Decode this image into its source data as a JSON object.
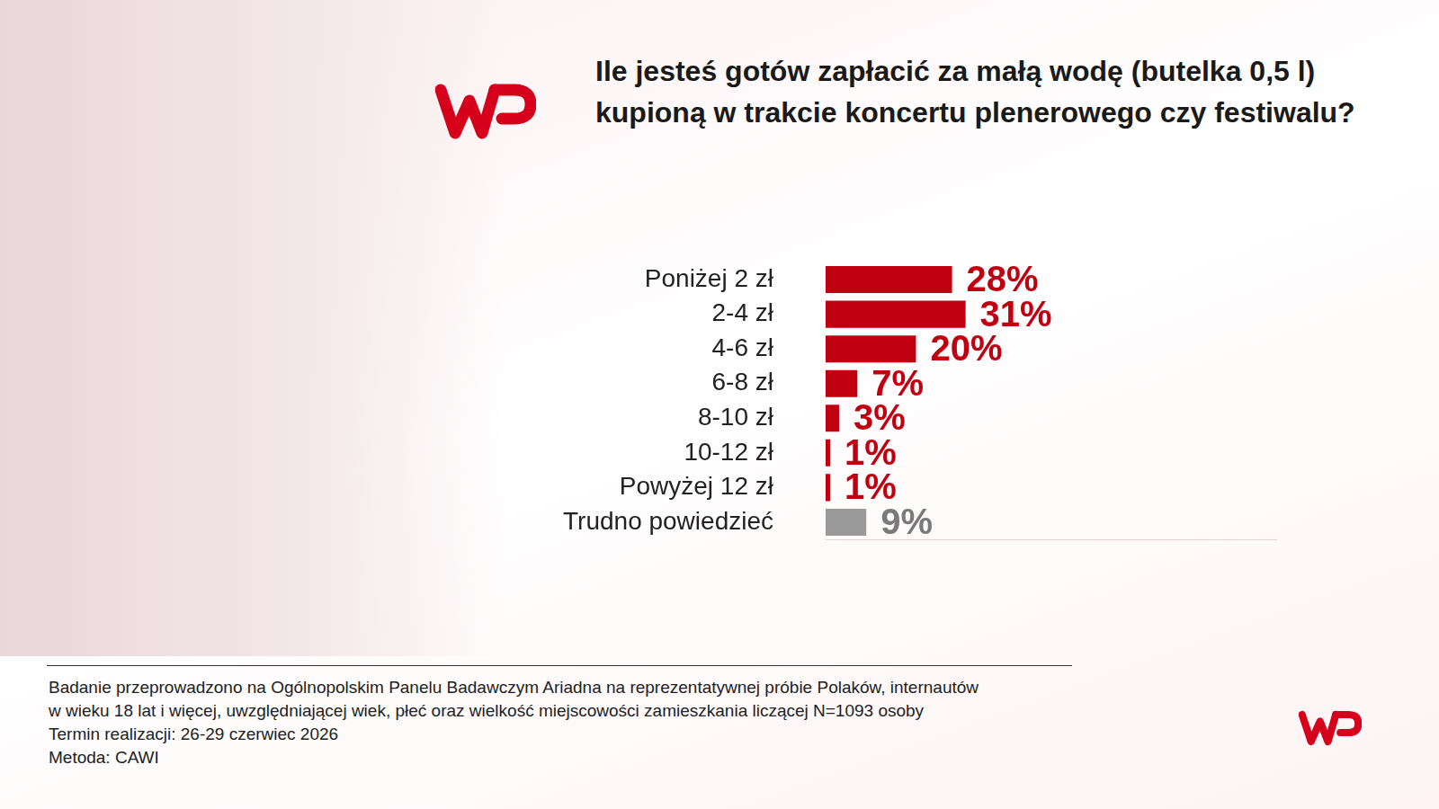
{
  "chart_data": {
    "type": "bar",
    "orientation": "horizontal",
    "title": "Ile jesteś gotów zapłacić za małą wodę (butelka 0,5 l) kupioną w trakcie koncertu plenerowego czy festiwalu?",
    "categories": [
      "Poniżej 2 zł",
      "2-4 zł",
      "4-6 zł",
      "6-8 zł",
      "8-10 zł",
      "10-12 zł",
      "Powyżej 12 zł",
      "Trudno powiedzieć"
    ],
    "values": [
      28,
      31,
      20,
      7,
      3,
      1,
      1,
      9
    ],
    "value_labels": [
      "28%",
      "31%",
      "20%",
      "7%",
      "3%",
      "1%",
      "1%",
      "9%"
    ],
    "colors": [
      "#c00010",
      "#c00010",
      "#c00010",
      "#c00010",
      "#c00010",
      "#c00010",
      "#c00010",
      "#9a9a9a"
    ],
    "xlim": [
      0,
      100
    ],
    "data_labels": true,
    "tick_labels": "y",
    "grid": false,
    "footnote": [
      "Badanie przeprowadzono na Ogólnopolskim Panelu Badawczym Ariadna na reprezentatywnej próbie Polaków, internautów",
      "w wieku 18 lat i więcej, uwzględniającej wiek, płeć oraz wielkość miejscowości zamieszkania liczącej N=1093 osoby",
      "Termin realizacji: 26-29 czerwiec 2026",
      "Metoda: CAWI"
    ]
  }
}
